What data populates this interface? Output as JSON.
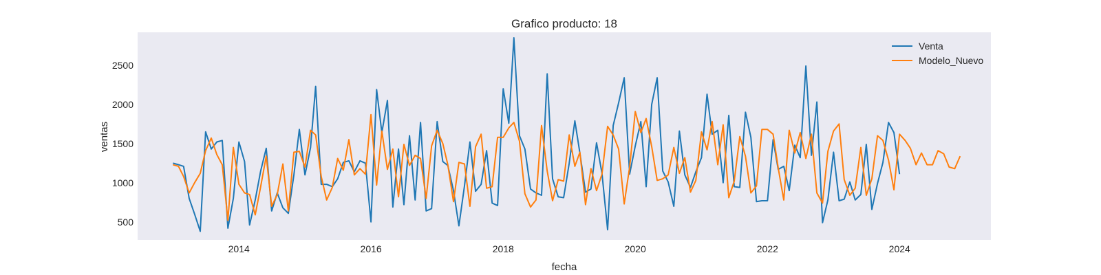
{
  "chart_data": {
    "type": "line",
    "title": "Grafico producto: 18",
    "xlabel": "fecha",
    "ylabel": "ventas",
    "x_ticks": [
      "2014",
      "2016",
      "2018",
      "2020",
      "2022",
      "2024"
    ],
    "y_ticks": [
      500,
      1000,
      1500,
      2000,
      2500
    ],
    "xlim": [
      "2012-06-20",
      "2025-05-20"
    ],
    "ylim": [
      270,
      2920
    ],
    "start_month": "2013-01",
    "grid": false,
    "legend_position": "top-right",
    "background_color": "#eaeaf2",
    "series": [
      {
        "name": "Venta",
        "color": "#1f77b4",
        "values": [
          1250,
          1230,
          1210,
          800,
          600,
          380,
          1650,
          1430,
          1520,
          1540,
          420,
          800,
          1520,
          1270,
          460,
          780,
          1150,
          1440,
          640,
          870,
          680,
          610,
          1100,
          1680,
          1100,
          1450,
          2230,
          980,
          980,
          950,
          1050,
          1260,
          1280,
          1140,
          1280,
          1250,
          500,
          2190,
          1640,
          2050,
          690,
          1430,
          720,
          1600,
          780,
          1770,
          640,
          670,
          1780,
          1270,
          1220,
          900,
          450,
          960,
          1520,
          890,
          980,
          1410,
          740,
          710,
          2200,
          1760,
          2850,
          1600,
          1430,
          920,
          870,
          840,
          2390,
          1050,
          820,
          810,
          1250,
          1790,
          1380,
          880,
          920,
          1510,
          1120,
          400,
          1730,
          2020,
          2340,
          1110,
          1470,
          1780,
          950,
          2000,
          2340,
          1150,
          1010,
          700,
          1660,
          1100,
          940,
          1140,
          1320,
          2130,
          1620,
          1670,
          1000,
          1860,
          950,
          940,
          1900,
          1580,
          760,
          770,
          770,
          1550,
          1170,
          1210,
          900,
          1480,
          1320,
          2490,
          1350,
          2030,
          490,
          780,
          1390,
          770,
          790,
          1010,
          780,
          850,
          1490,
          660,
          990,
          1260,
          1770,
          1640,
          1110
        ]
      },
      {
        "name": "Modelo_Nuevo",
        "color": "#ff7f0e",
        "values": [
          1230,
          1210,
          1080,
          870,
          1000,
          1120,
          1410,
          1570,
          1360,
          1230,
          520,
          1450,
          980,
          870,
          850,
          590,
          950,
          1340,
          700,
          850,
          1240,
          640,
          1390,
          1400,
          1200,
          1670,
          1610,
          1080,
          780,
          940,
          1310,
          1160,
          1550,
          1100,
          1180,
          1110,
          1870,
          970,
          1660,
          1170,
          1430,
          820,
          1490,
          1220,
          1350,
          1310,
          800,
          1470,
          1670,
          1500,
          1230,
          760,
          1260,
          1240,
          700,
          1460,
          1620,
          930,
          950,
          1580,
          1580,
          1700,
          1770,
          1530,
          860,
          690,
          780,
          1730,
          1150,
          770,
          1040,
          1020,
          1610,
          1210,
          1390,
          720,
          1180,
          900,
          1110,
          1720,
          1610,
          1430,
          730,
          1200,
          1910,
          1640,
          1820,
          1460,
          1030,
          1050,
          1100,
          1450,
          1120,
          1320,
          880,
          1030,
          1650,
          1420,
          1780,
          1230,
          1740,
          810,
          1020,
          1590,
          1340,
          870,
          960,
          1680,
          1680,
          1620,
          1190,
          780,
          1670,
          1380,
          1640,
          1310,
          1620,
          870,
          740,
          1400,
          1660,
          1750,
          1040,
          840,
          930,
          1450,
          840,
          1050,
          1600,
          1540,
          1290,
          910,
          1620,
          1540,
          1440,
          1230,
          1380,
          1230,
          1230,
          1410,
          1370,
          1200,
          1180,
          1340
        ]
      }
    ]
  }
}
